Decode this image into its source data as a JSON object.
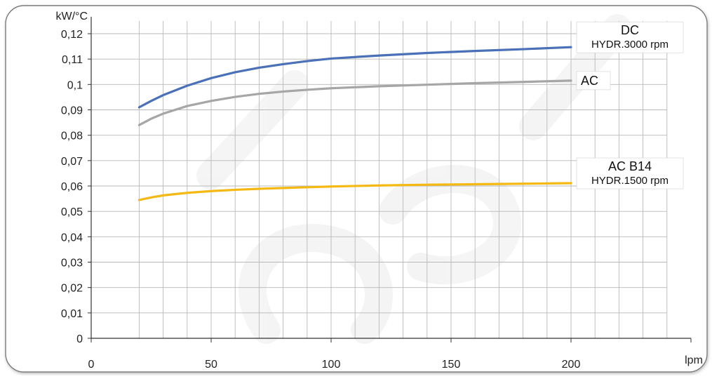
{
  "chart_data": {
    "type": "line",
    "title": "",
    "xlabel": "lpm",
    "ylabel": "kW/°C",
    "xlim": [
      0,
      250
    ],
    "ylim": [
      0,
      0.12
    ],
    "x_ticks": [
      0,
      50,
      100,
      150,
      200
    ],
    "x_tick_labels": [
      "0",
      "50",
      "100",
      "150",
      "200"
    ],
    "y_ticks": [
      0,
      0.01,
      0.02,
      0.03,
      0.04,
      0.05,
      0.06,
      0.07,
      0.08,
      0.09,
      0.1,
      0.11,
      0.12
    ],
    "y_tick_labels": [
      "0",
      "0,01",
      "0,02",
      "0,03",
      "0,04",
      "0,05",
      "0,06",
      "0,07",
      "0,08",
      "0,09",
      "0,1",
      "0,11",
      "0,12"
    ],
    "grid": true,
    "series": [
      {
        "name": "DC",
        "subtitle": "HYDR.3000 rpm",
        "color": "#4a70b8",
        "x": [
          20,
          25,
          30,
          40,
          50,
          60,
          70,
          80,
          90,
          100,
          120,
          140,
          160,
          180,
          200
        ],
        "y": [
          0.091,
          0.0935,
          0.0958,
          0.0995,
          0.1025,
          0.1048,
          0.1066,
          0.108,
          0.1092,
          0.1102,
          0.1114,
          0.1124,
          0.1132,
          0.1139,
          0.1147
        ]
      },
      {
        "name": "AC",
        "color": "#a6a6a6",
        "x": [
          20,
          25,
          30,
          40,
          50,
          60,
          70,
          80,
          90,
          100,
          120,
          140,
          160,
          180,
          200
        ],
        "y": [
          0.084,
          0.0865,
          0.0885,
          0.0915,
          0.0935,
          0.0951,
          0.0963,
          0.0972,
          0.0979,
          0.0985,
          0.0993,
          0.0999,
          0.1005,
          0.101,
          0.1015
        ]
      },
      {
        "name": "AC B14",
        "subtitle": "HYDR.1500 rpm",
        "color": "#f5b913",
        "x": [
          20,
          25,
          30,
          40,
          50,
          60,
          70,
          80,
          90,
          100,
          120,
          140,
          160,
          180,
          200
        ],
        "y": [
          0.0545,
          0.0555,
          0.0563,
          0.0573,
          0.058,
          0.0585,
          0.0589,
          0.0592,
          0.0595,
          0.0598,
          0.0602,
          0.0605,
          0.0607,
          0.0609,
          0.0611
        ]
      }
    ]
  }
}
